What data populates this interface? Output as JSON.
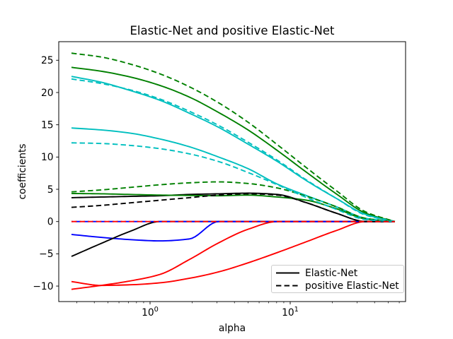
{
  "figure": {
    "background": "#ffffff"
  },
  "chart_data": {
    "type": "line",
    "title": "Elastic-Net and positive Elastic-Net",
    "xlabel": "alpha",
    "ylabel": "coefficients",
    "x_scale": "log",
    "grid": false,
    "xlim": [
      0.223,
      66.5
    ],
    "ylim": [
      -12.4,
      27.9
    ],
    "xticks": [
      {
        "value": 1,
        "label": "10^0"
      },
      {
        "value": 10,
        "label": "10^1"
      }
    ],
    "yticks": [
      {
        "value": -10,
        "label": "−10"
      },
      {
        "value": -5,
        "label": "−5"
      },
      {
        "value": 0,
        "label": "0"
      },
      {
        "value": 5,
        "label": "5"
      },
      {
        "value": 10,
        "label": "10"
      },
      {
        "value": 15,
        "label": "15"
      },
      {
        "value": 20,
        "label": "20"
      },
      {
        "value": 25,
        "label": "25"
      }
    ],
    "x": [
      0.275,
      0.447,
      0.724,
      1.174,
      1.903,
      3.085,
      5.0,
      8.105,
      13.14,
      21.3,
      34.52,
      55.85
    ],
    "series": [
      {
        "name": "elastic-net-blue",
        "color": "#0000ff",
        "style": "solid",
        "values": [
          -2.0,
          -2.45,
          -2.8,
          -3.0,
          -2.7,
          0,
          0,
          0,
          0,
          0,
          0,
          0
        ]
      },
      {
        "name": "elastic-net-red-1",
        "color": "#ff0000",
        "style": "solid",
        "values": [
          -9.3,
          -9.9,
          -9.8,
          -9.5,
          -8.8,
          -7.8,
          -6.4,
          -4.8,
          -3.1,
          -1.4,
          0,
          0
        ]
      },
      {
        "name": "elastic-net-green-1",
        "color": "#008000",
        "style": "solid",
        "values": [
          23.9,
          23.3,
          22.4,
          21.1,
          19.3,
          16.9,
          14.2,
          11.0,
          7.6,
          4.3,
          1.3,
          0
        ]
      },
      {
        "name": "elastic-net-cyan-1",
        "color": "#00bfbf",
        "style": "solid",
        "values": [
          22.5,
          21.6,
          20.3,
          18.8,
          16.8,
          14.6,
          12.0,
          9.3,
          6.3,
          3.6,
          1.1,
          0
        ]
      },
      {
        "name": "elastic-net-black-1",
        "color": "#000000",
        "style": "solid",
        "values": [
          3.7,
          3.8,
          3.9,
          4.0,
          4.2,
          4.3,
          4.4,
          4.2,
          2.9,
          1.3,
          0,
          0
        ]
      },
      {
        "name": "elastic-net-red-2",
        "color": "#ff0000",
        "style": "solid",
        "values": [
          -10.5,
          -9.9,
          -9.2,
          -8.2,
          -5.9,
          -3.3,
          -1.2,
          0,
          0,
          0,
          0,
          0
        ]
      },
      {
        "name": "elastic-net-green-2",
        "color": "#008000",
        "style": "solid",
        "values": [
          4.35,
          4.3,
          4.2,
          4.1,
          4.05,
          4.0,
          4.1,
          3.8,
          3.3,
          2.0,
          0.4,
          0
        ]
      },
      {
        "name": "elastic-net-cyan-2",
        "color": "#00bfbf",
        "style": "solid",
        "values": [
          14.5,
          14.2,
          13.7,
          12.8,
          11.6,
          10.0,
          8.2,
          5.8,
          4.0,
          2.3,
          0.5,
          0
        ]
      },
      {
        "name": "elastic-net-black-2",
        "color": "#000000",
        "style": "solid",
        "values": [
          -5.4,
          -3.4,
          -1.5,
          0,
          0,
          0,
          0,
          0,
          0,
          0,
          0,
          0
        ]
      },
      {
        "name": "positive-blue",
        "color": "#0000ff",
        "style": "dashed",
        "phase": 5.8,
        "values": [
          0,
          0,
          0,
          0,
          0,
          0,
          0,
          0,
          0,
          0,
          0,
          0
        ]
      },
      {
        "name": "positive-green-1",
        "color": "#008000",
        "style": "dashed",
        "values": [
          26.1,
          25.5,
          24.4,
          22.9,
          20.9,
          18.4,
          15.4,
          11.9,
          8.3,
          4.8,
          1.5,
          0
        ]
      },
      {
        "name": "positive-cyan-1",
        "color": "#00bfbf",
        "style": "dashed",
        "values": [
          22.1,
          21.4,
          20.4,
          19.0,
          17.1,
          14.9,
          12.3,
          9.5,
          6.4,
          3.6,
          1.0,
          0
        ]
      },
      {
        "name": "positive-black",
        "color": "#000000",
        "style": "dashed",
        "values": [
          2.2,
          2.5,
          2.9,
          3.3,
          3.7,
          4.1,
          4.3,
          4.1,
          2.9,
          1.3,
          0,
          0
        ]
      },
      {
        "name": "positive-green-2",
        "color": "#008000",
        "style": "dashed",
        "values": [
          4.6,
          4.9,
          5.3,
          5.7,
          6.0,
          6.15,
          5.9,
          5.2,
          3.9,
          2.3,
          0.5,
          0
        ]
      },
      {
        "name": "positive-cyan-2",
        "color": "#00bfbf",
        "style": "dashed",
        "values": [
          12.2,
          12.1,
          11.8,
          11.3,
          10.5,
          9.3,
          7.6,
          5.7,
          3.7,
          1.9,
          0.3,
          0
        ]
      },
      {
        "name": "positive-red",
        "color": "#ff0000",
        "style": "dashed",
        "values": [
          0,
          0,
          0,
          0,
          0,
          0,
          0,
          0,
          0,
          0,
          0,
          0
        ]
      }
    ],
    "legend": {
      "position": "lower right",
      "entries": [
        {
          "label": "Elastic-Net",
          "style": "solid",
          "color": "#000000"
        },
        {
          "label": "positive Elastic-Net",
          "style": "dashed",
          "color": "#000000"
        }
      ]
    }
  }
}
